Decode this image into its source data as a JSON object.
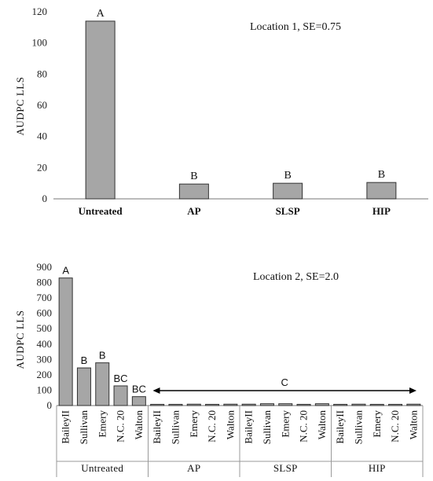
{
  "chart_data": [
    {
      "type": "bar",
      "annotation": "Location 1, SE=0.75",
      "ylabel": "AUDPC LLS",
      "ylim": [
        0,
        120
      ],
      "yticks": [
        0,
        20,
        40,
        60,
        80,
        100,
        120
      ],
      "categories": [
        "Untreated",
        "AP",
        "SLSP",
        "HIP"
      ],
      "values": [
        114,
        9.5,
        10,
        10.5
      ],
      "letters": [
        "A",
        "B",
        "B",
        "B"
      ],
      "bar_color": "#a6a6a6"
    },
    {
      "type": "bar",
      "annotation": "Location 2, SE=2.0",
      "ylabel": "AUDPC LLS",
      "ylim": [
        0,
        900
      ],
      "yticks": [
        0,
        100,
        200,
        300,
        400,
        500,
        600,
        700,
        800,
        900
      ],
      "groups": [
        "Untreated",
        "AP",
        "SLSP",
        "HIP"
      ],
      "varieties": [
        "BaileyII",
        "Sullivan",
        "Emery",
        "N.C. 20",
        "Walton"
      ],
      "values": [
        [
          830,
          245,
          278,
          128,
          58
        ],
        [
          8,
          8,
          9,
          8,
          9
        ],
        [
          9,
          12,
          12,
          8,
          12
        ],
        [
          8,
          9,
          8,
          8,
          9
        ]
      ],
      "letters": [
        "A",
        "B",
        "B",
        "BC",
        "BC"
      ],
      "range_letter": "C",
      "bar_color": "#a6a6a6"
    }
  ]
}
